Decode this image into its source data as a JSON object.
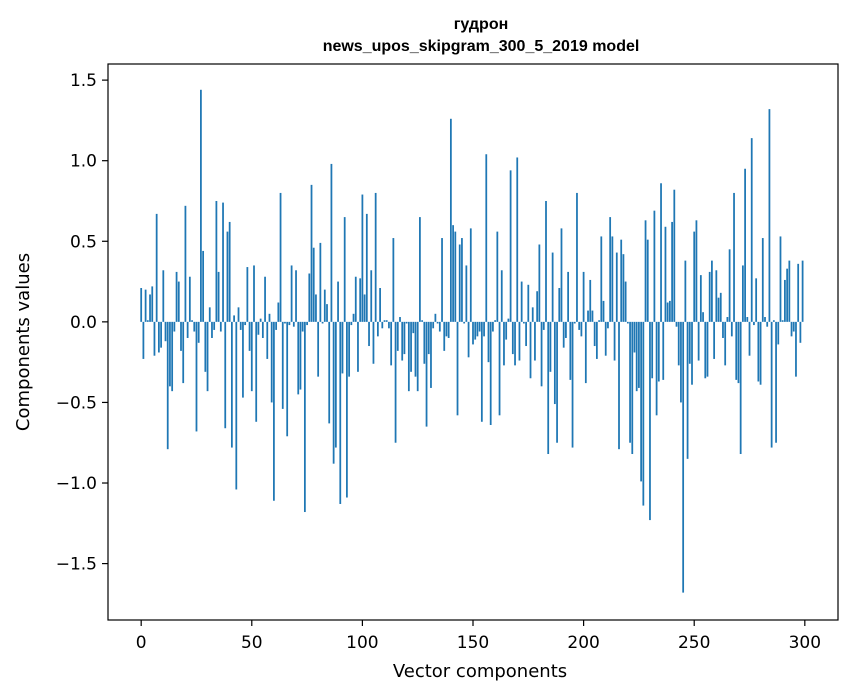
{
  "chart_data": {
    "type": "bar",
    "title": "гудрон",
    "subtitle": "news_upos_skipgram_300_5_2019 model",
    "xlabel": "Vector components",
    "ylabel": "Components values",
    "xlim": [
      -15,
      315
    ],
    "ylim": [
      -1.85,
      1.6
    ],
    "xticks": [
      0,
      50,
      100,
      150,
      200,
      250,
      300
    ],
    "xtick_labels": [
      "0",
      "50",
      "100",
      "150",
      "200",
      "250",
      "300"
    ],
    "yticks": [
      1.5,
      1.0,
      0.5,
      0.0,
      -0.5,
      -1.0,
      -1.5
    ],
    "ytick_labels": [
      "1.5",
      "1.0",
      "0.5",
      "0.0",
      "−0.5",
      "−1.0",
      "−1.5"
    ],
    "bar_color": "#1f77b4",
    "values": [
      0.21,
      -0.23,
      0.2,
      0.01,
      0.17,
      0.22,
      -0.21,
      0.67,
      -0.19,
      -0.16,
      0.32,
      -0.12,
      -0.79,
      -0.4,
      -0.43,
      -0.06,
      0.31,
      0.25,
      -0.18,
      -0.38,
      0.72,
      -0.1,
      0.28,
      0.01,
      -0.06,
      -0.68,
      -0.13,
      1.44,
      0.44,
      -0.31,
      -0.43,
      0.09,
      -0.1,
      -0.05,
      0.75,
      0.31,
      -0.06,
      0.74,
      -0.66,
      0.56,
      0.62,
      -0.78,
      0.04,
      -1.04,
      0.09,
      -0.05,
      -0.47,
      -0.02,
      0.34,
      -0.18,
      -0.43,
      0.35,
      -0.62,
      -0.08,
      0.02,
      -0.1,
      0.28,
      -0.23,
      0.05,
      -0.5,
      -1.11,
      -0.05,
      0.12,
      0.8,
      -0.54,
      -0.01,
      -0.71,
      -0.02,
      0.35,
      -0.03,
      0.32,
      -0.45,
      -0.42,
      -0.06,
      -1.18,
      -0.02,
      0.3,
      0.85,
      0.46,
      0.17,
      -0.34,
      0.49,
      -0.01,
      0.2,
      0.11,
      -0.63,
      0.98,
      -0.88,
      -0.78,
      0.25,
      -1.13,
      -0.32,
      0.65,
      -1.09,
      -0.34,
      -0.02,
      0.05,
      0.28,
      -0.31,
      0.27,
      0.79,
      0.17,
      0.67,
      -0.15,
      0.32,
      -0.26,
      0.8,
      -0.09,
      0.21,
      -0.04,
      0.01,
      0.01,
      -0.04,
      -0.27,
      0.52,
      -0.75,
      -0.18,
      0.03,
      -0.24,
      -0.2,
      -0.01,
      -0.43,
      -0.31,
      -0.07,
      -0.34,
      -0.43,
      0.65,
      0.01,
      -0.26,
      -0.65,
      -0.2,
      -0.41,
      -0.04,
      0.05,
      -0.01,
      -0.06,
      0.52,
      -0.18,
      -0.09,
      -0.1,
      1.26,
      0.6,
      0.56,
      -0.58,
      0.48,
      0.52,
      -0.01,
      0.35,
      -0.22,
      0.58,
      -0.14,
      -0.11,
      -0.09,
      -0.06,
      -0.62,
      -0.09,
      1.04,
      -0.25,
      -0.64,
      -0.06,
      0.01,
      0.56,
      -0.58,
      0.32,
      -0.27,
      -0.11,
      0.02,
      0.94,
      -0.2,
      -0.27,
      1.02,
      -0.24,
      0.25,
      -0.01,
      -0.15,
      0.23,
      -0.35,
      0.09,
      -0.24,
      0.19,
      0.48,
      -0.4,
      -0.05,
      0.75,
      -0.82,
      -0.31,
      0.43,
      -0.51,
      -0.75,
      0.21,
      0.58,
      -0.16,
      -0.1,
      0.31,
      -0.36,
      -0.78,
      -0.01,
      0.8,
      -0.05,
      -0.09,
      0.31,
      -0.38,
      0.07,
      0.26,
      0.07,
      -0.15,
      -0.23,
      0.01,
      0.53,
      0.13,
      -0.21,
      -0.04,
      0.65,
      0.53,
      -0.24,
      0.43,
      -0.79,
      0.51,
      0.42,
      0.25,
      -0.01,
      -0.75,
      -0.82,
      -0.19,
      -0.43,
      -0.41,
      -0.99,
      -1.14,
      0.63,
      0.51,
      -1.23,
      -0.35,
      0.69,
      -0.58,
      -0.37,
      0.86,
      -0.36,
      0.59,
      0.12,
      0.13,
      0.62,
      0.82,
      -0.03,
      -0.27,
      -0.5,
      -1.68,
      0.38,
      -0.85,
      -0.26,
      -0.39,
      0.56,
      0.63,
      -0.24,
      0.29,
      0.06,
      -0.35,
      -0.34,
      0.31,
      0.38,
      -0.23,
      0.32,
      0.15,
      0.18,
      -0.1,
      -0.27,
      0.03,
      0.45,
      -0.09,
      0.8,
      -0.36,
      -0.38,
      -0.82,
      0.35,
      0.95,
      0.03,
      -0.21,
      1.14,
      -0.02,
      0.27,
      -0.37,
      -0.39,
      0.52,
      0.03,
      -0.03,
      1.32,
      -0.78,
      0.01,
      -0.75,
      -0.14,
      0.53,
      0.01,
      0.26,
      0.33,
      0.38,
      -0.09,
      -0.06,
      -0.34,
      0.36,
      -0.13,
      0.38
    ]
  }
}
